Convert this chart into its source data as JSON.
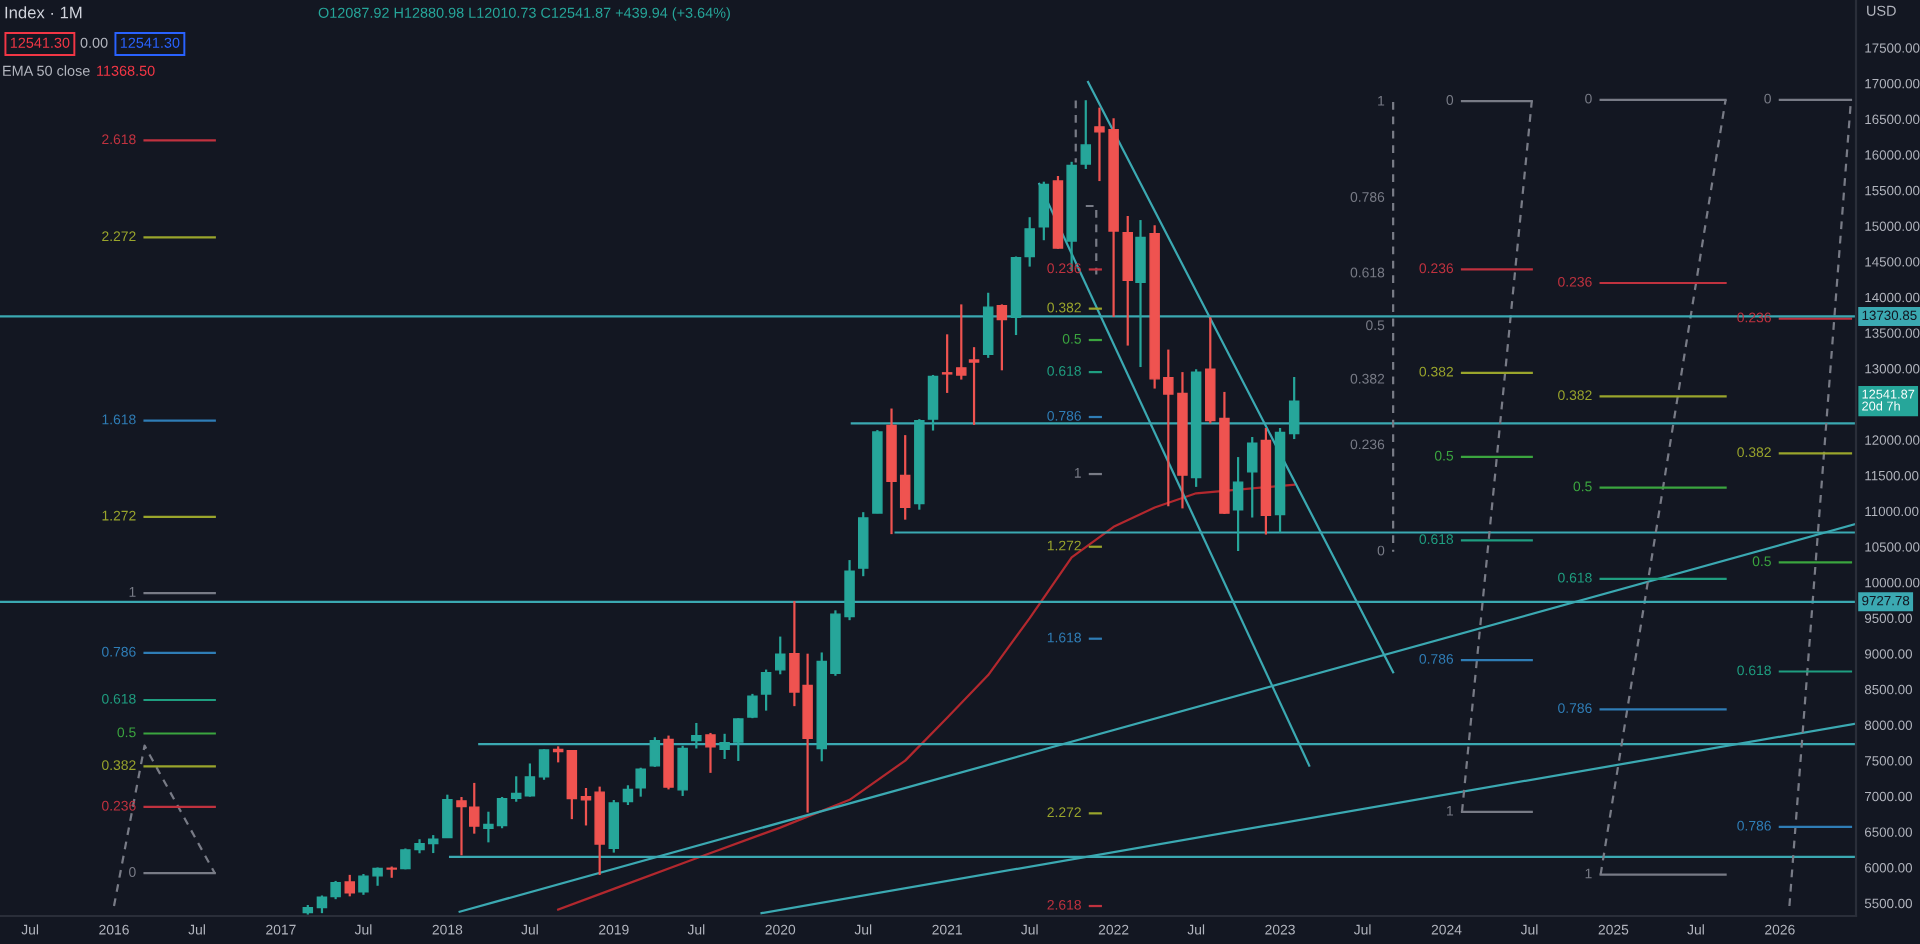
{
  "chart_data": {
    "type": "candlestick",
    "title": "Index · 1M",
    "subtitle": "O12087.92 H12880.98 L12010.73 C12541.87 +439.94 (+3.64%)",
    "x": [
      "2017-03",
      "2017-04",
      "2017-05",
      "2017-06",
      "2017-07",
      "2017-08",
      "2017-09",
      "2017-10",
      "2017-11",
      "2017-12",
      "2018-01",
      "2018-02",
      "2018-03",
      "2018-04",
      "2018-05",
      "2018-06",
      "2018-07",
      "2018-08",
      "2018-09",
      "2018-10",
      "2018-11",
      "2018-12",
      "2019-01",
      "2019-02",
      "2019-03",
      "2019-04",
      "2019-05",
      "2019-06",
      "2019-07",
      "2019-08",
      "2019-09",
      "2019-10",
      "2019-11",
      "2019-12",
      "2020-01",
      "2020-02",
      "2020-03",
      "2020-04",
      "2020-05",
      "2020-06",
      "2020-07",
      "2020-08",
      "2020-09",
      "2020-10",
      "2020-11",
      "2020-12",
      "2021-01",
      "2021-02",
      "2021-03",
      "2021-04",
      "2021-05",
      "2021-06",
      "2021-07",
      "2021-08",
      "2021-09",
      "2021-10",
      "2021-11",
      "2021-12",
      "2022-01",
      "2022-02",
      "2022-03",
      "2022-04",
      "2022-05",
      "2022-06",
      "2022-07",
      "2022-08",
      "2022-09",
      "2022-10",
      "2022-11",
      "2022-12",
      "2023-01",
      "2023-02"
    ],
    "ohlc": [
      [
        5370,
        5474,
        5340,
        5436
      ],
      [
        5440,
        5608,
        5360,
        5584
      ],
      [
        5594,
        5812,
        5556,
        5788
      ],
      [
        5797,
        5897,
        5596,
        5647
      ],
      [
        5660,
        5909,
        5617,
        5880
      ],
      [
        5883,
        6001,
        5744,
        5988
      ],
      [
        5990,
        6014,
        5856,
        5979
      ],
      [
        5987,
        6267,
        5975,
        6248
      ],
      [
        6253,
        6397,
        6200,
        6335
      ],
      [
        6337,
        6455,
        6203,
        6397
      ],
      [
        6421,
        7022,
        6415,
        6950
      ],
      [
        6935,
        6989,
        6171,
        6854
      ],
      [
        6848,
        7187,
        6475,
        6581
      ],
      [
        6550,
        6783,
        6353,
        6606
      ],
      [
        6590,
        6990,
        6551,
        6967
      ],
      [
        6972,
        7280,
        6923,
        7040
      ],
      [
        7006,
        7460,
        6994,
        7272
      ],
      [
        7272,
        7660,
        7231,
        7650
      ],
      [
        7655,
        7700,
        7475,
        7627
      ],
      [
        7640,
        7648,
        6679,
        6967
      ],
      [
        6995,
        7116,
        6590,
        6949
      ],
      [
        7057,
        7135,
        5896,
        6330
      ],
      [
        6269,
        6947,
        6209,
        6906
      ],
      [
        6926,
        7154,
        6877,
        7097
      ],
      [
        7120,
        7400,
        6994,
        7378
      ],
      [
        7426,
        7828,
        7412,
        7781
      ],
      [
        7796,
        7851,
        7096,
        7128
      ],
      [
        7090,
        7708,
        7004,
        7671
      ],
      [
        7780,
        8028,
        7670,
        7848
      ],
      [
        7860,
        7888,
        7328,
        7692
      ],
      [
        7660,
        7876,
        7523,
        7750
      ],
      [
        7760,
        8094,
        7495,
        8084
      ],
      [
        8112,
        8436,
        8095,
        8405
      ],
      [
        8434,
        8777,
        8201,
        8733
      ],
      [
        8773,
        9240,
        8711,
        8992
      ],
      [
        9000,
        9737,
        8264,
        8462
      ],
      [
        8555,
        9000,
        6771,
        7813
      ],
      [
        7669,
        9017,
        7490,
        8890
      ],
      [
        8725,
        9608,
        8690,
        9555
      ],
      [
        9521,
        10313,
        9470,
        10157
      ],
      [
        10200,
        10985,
        10087,
        10905
      ],
      [
        10973,
        12137,
        10970,
        12110
      ],
      [
        12200,
        12439,
        10677,
        11418
      ],
      [
        11500,
        12066,
        10880,
        11052
      ],
      [
        11106,
        12290,
        11020,
        12268
      ],
      [
        12290,
        12910,
        12130,
        12888
      ],
      [
        12940,
        13480,
        12658,
        12925
      ],
      [
        13010,
        13900,
        12845,
        12909
      ],
      [
        13120,
        13300,
        12209,
        13091
      ],
      [
        13200,
        14063,
        13150,
        13861
      ],
      [
        13880,
        13900,
        12975,
        13687
      ],
      [
        13720,
        14572,
        13470,
        14554
      ],
      [
        14570,
        15123,
        14430,
        14960
      ],
      [
        14990,
        15621,
        14800,
        15583
      ],
      [
        15630,
        15701,
        14680,
        14690
      ],
      [
        14790,
        15900,
        14370,
        15850
      ],
      [
        15870,
        16764,
        15800,
        16135
      ],
      [
        16390,
        16660,
        15630,
        16320
      ],
      [
        16350,
        16511,
        13724,
        14930
      ],
      [
        14905,
        15140,
        13322,
        14238
      ],
      [
        14210,
        15083,
        13021,
        14838
      ],
      [
        14890,
        15010,
        12719,
        12855
      ],
      [
        12870,
        13266,
        11068,
        12643
      ],
      [
        12650,
        12950,
        11038,
        11504
      ],
      [
        11470,
        12990,
        11340,
        12947
      ],
      [
        12990,
        13720,
        12230,
        12272
      ],
      [
        12300,
        12672,
        10960,
        10971
      ],
      [
        11020,
        11758,
        10440,
        11406
      ],
      [
        11550,
        12040,
        10910,
        11951
      ],
      [
        11990,
        12166,
        10671,
        10940
      ],
      [
        10950,
        12166,
        10696,
        12102
      ],
      [
        12087.92,
        12880.98,
        12010.73,
        12541.87
      ]
    ],
    "colors": [
      "#26a69a",
      "#26a69a",
      "#26a69a",
      "#ef5350",
      "#26a69a",
      "#26a69a",
      "#ef5350",
      "#26a69a",
      "#26a69a",
      "#26a69a",
      "#26a69a",
      "#ef5350",
      "#ef5350",
      "#26a69a",
      "#26a69a",
      "#26a69a",
      "#26a69a",
      "#26a69a",
      "#ef5350",
      "#ef5350",
      "#ef5350",
      "#ef5350",
      "#26a69a",
      "#26a69a",
      "#26a69a",
      "#26a69a",
      "#ef5350",
      "#26a69a",
      "#26a69a",
      "#ef5350",
      "#26a69a",
      "#26a69a",
      "#26a69a",
      "#26a69a",
      "#26a69a",
      "#ef5350",
      "#ef5350",
      "#26a69a",
      "#26a69a",
      "#26a69a",
      "#26a69a",
      "#26a69a",
      "#ef5350",
      "#ef5350",
      "#26a69a",
      "#26a69a",
      "#ef5350",
      "#ef5350",
      "#ef5350",
      "#26a69a",
      "#ef5350",
      "#26a69a",
      "#26a69a",
      "#26a69a",
      "#ef5350",
      "#26a69a",
      "#26a69a",
      "#ef5350",
      "#ef5350",
      "#ef5350",
      "#26a69a",
      "#ef5350",
      "#ef5350",
      "#ef5350",
      "#26a69a",
      "#ef5350",
      "#ef5350",
      "#26a69a",
      "#26a69a",
      "#ef5350",
      "#26a69a",
      "#26a69a"
    ],
    "series": [
      {
        "type": "line",
        "color": "#b2282e",
        "x": [
          "2018-09",
          "2019-01",
          "2019-07",
          "2020-01",
          "2020-06",
          "2020-10",
          "2021-01",
          "2021-04",
          "2021-07",
          "2021-10",
          "2022-01",
          "2022-04",
          "2022-07",
          "2022-10",
          "2023-02"
        ],
        "values": [
          5410,
          5700,
          6130,
          6560,
          6950,
          7500,
          8100,
          8700,
          9500,
          10350,
          10780,
          11050,
          11250,
          11300,
          11370
        ]
      },
      {
        "type": "line",
        "color": "#3ba9b2",
        "x": [
          "2018-01-28",
          "2026-06-17"
        ],
        "values": [
          5380,
          10820
        ]
      },
      {
        "type": "line",
        "color": "#3ba9b2",
        "x": [
          "2019-11-21",
          "2026-06-17"
        ],
        "values": [
          5360,
          8020
        ]
      },
      {
        "type": "line",
        "color": "#3ba9b2",
        "x": [
          "2021-11-06",
          "2023-09-06"
        ],
        "values": [
          17020,
          8740
        ]
      },
      {
        "type": "line",
        "color": "#3ba9b2",
        "x": [
          "2021-07-22",
          "2023-03-06"
        ],
        "values": [
          15590,
          7430
        ]
      },
      {
        "type": "line",
        "color": "#3ba9b2",
        "x": [
          "2020-06-06",
          "2026-06-17"
        ],
        "values": [
          12230,
          12230
        ]
      },
      {
        "type": "line",
        "color": "#3ba9b2",
        "x": [
          "2020-09-10",
          "2026-06-17"
        ],
        "values": [
          10700,
          10700
        ]
      },
      {
        "type": "line",
        "color": "#3ba9b2",
        "x": [
          "2018-03-12",
          "2026-06-17"
        ],
        "values": [
          7730,
          7730
        ]
      },
      {
        "type": "line",
        "color": "#3ba9b2",
        "x": [
          "2018-01-07",
          "2026-06-17"
        ],
        "values": [
          6150,
          6150
        ]
      },
      {
        "type": "line",
        "color": "#787b86",
        "line_style": "dashed",
        "x": [
          "2016-01-01",
          "2016-03-08",
          "2016-08-09"
        ],
        "values": [
          5460,
          7710,
          5920
        ]
      },
      {
        "type": "line",
        "color": "#787b86",
        "line_style": "dashed",
        "x": [
          "2021-10-10",
          "2021-10-10"
        ],
        "values": [
          16760,
          15890
        ]
      },
      {
        "type": "line",
        "color": "#787b86",
        "line_style": "dashed",
        "x": [
          "2021-11-01",
          "2021-11-24",
          "2021-11-24"
        ],
        "values": [
          15280,
          15280,
          14320
        ]
      },
      {
        "type": "line",
        "color": "#787b86",
        "line_style": "dashed",
        "x": [
          "2023-09-06",
          "2023-09-06"
        ],
        "values": [
          16740,
          10430
        ]
      },
      {
        "type": "line",
        "color": "#787b86",
        "line_style": "dashed",
        "x": [
          "2024-02-04",
          "2024-07-06"
        ],
        "values": [
          6780,
          16750
        ]
      },
      {
        "type": "line",
        "color": "#787b86",
        "line_style": "dashed",
        "x": [
          "2024-12-04",
          "2025-09-04"
        ],
        "values": [
          5900,
          16770
        ]
      },
      {
        "type": "line",
        "color": "#787b86",
        "line_style": "dashed",
        "x": [
          "2026-01-22",
          "2026-06-06"
        ],
        "values": [
          5460,
          16770
        ]
      },
      {
        "type": "line",
        "name": "2.618",
        "color": "#c0323f",
        "x": [
          "2016-03-08",
          "2016-08-09"
        ],
        "values": [
          16200,
          16200
        ]
      },
      {
        "type": "line",
        "name": "2.272",
        "color": "#9aa52c",
        "x": [
          "2016-03-08",
          "2016-08-09"
        ],
        "values": [
          14840,
          14840
        ]
      },
      {
        "type": "line",
        "name": "1.618",
        "color": "#2f7db6",
        "x": [
          "2016-03-08",
          "2016-08-09"
        ],
        "values": [
          12270,
          12270
        ]
      },
      {
        "type": "line",
        "name": "1.272",
        "color": "#9aa52c",
        "x": [
          "2016-03-08",
          "2016-08-09"
        ],
        "values": [
          10920,
          10920
        ]
      },
      {
        "type": "line",
        "name": "1",
        "color": "#787b86",
        "x": [
          "2016-03-08",
          "2016-08-09"
        ],
        "values": [
          9850,
          9850
        ]
      },
      {
        "type": "line",
        "name": "0.786",
        "color": "#2f7db6",
        "x": [
          "2016-03-08",
          "2016-08-09"
        ],
        "values": [
          9010,
          9010
        ]
      },
      {
        "type": "line",
        "name": "0.618",
        "color": "#1f9e80",
        "x": [
          "2016-03-08",
          "2016-08-09"
        ],
        "values": [
          8350,
          8350
        ]
      },
      {
        "type": "line",
        "name": "0.5",
        "color": "#3ba53f",
        "x": [
          "2016-03-08",
          "2016-08-09"
        ],
        "values": [
          7880,
          7880
        ]
      },
      {
        "type": "line",
        "name": "0.382",
        "color": "#9aa52c",
        "x": [
          "2016-03-08",
          "2016-08-09"
        ],
        "values": [
          7420,
          7420
        ]
      },
      {
        "type": "line",
        "name": "0.236",
        "color": "#c0323f",
        "x": [
          "2016-03-08",
          "2016-08-09"
        ],
        "values": [
          6850,
          6850
        ]
      },
      {
        "type": "line",
        "name": "0",
        "color": "#787b86",
        "x": [
          "2016-03-08",
          "2016-08-09"
        ],
        "values": [
          5920,
          5920
        ]
      },
      {
        "type": "line",
        "name": "0.236",
        "color": "#c0323f",
        "x": [
          "2021-11-10",
          "2021-12-04"
        ],
        "values": [
          14390,
          14390
        ]
      },
      {
        "type": "line",
        "name": "0.382",
        "color": "#9aa52c",
        "x": [
          "2021-11-10",
          "2021-12-04"
        ],
        "values": [
          13840,
          13840
        ]
      },
      {
        "type": "line",
        "name": "0.5",
        "color": "#3ba53f",
        "x": [
          "2021-11-10",
          "2021-12-04"
        ],
        "values": [
          13400,
          13400
        ]
      },
      {
        "type": "line",
        "name": "0.618",
        "color": "#1f9e80",
        "x": [
          "2021-11-10",
          "2021-12-04"
        ],
        "values": [
          12950,
          12950
        ]
      },
      {
        "type": "line",
        "name": "0.786",
        "color": "#2f7db6",
        "x": [
          "2021-11-10",
          "2021-12-04"
        ],
        "values": [
          12320,
          12320
        ]
      },
      {
        "type": "line",
        "name": "1",
        "color": "#787b86",
        "x": [
          "2021-11-10",
          "2021-12-04"
        ],
        "values": [
          11520,
          11520
        ]
      },
      {
        "type": "line",
        "name": "1.272",
        "color": "#9aa52c",
        "x": [
          "2021-11-10",
          "2021-12-04"
        ],
        "values": [
          10500,
          10500
        ]
      },
      {
        "type": "line",
        "name": "1.618",
        "color": "#2f7db6",
        "x": [
          "2021-11-10",
          "2021-12-04"
        ],
        "values": [
          9210,
          9210
        ]
      },
      {
        "type": "line",
        "name": "2.272",
        "color": "#9aa52c",
        "x": [
          "2021-11-10",
          "2021-12-04"
        ],
        "values": [
          6760,
          6760
        ]
      },
      {
        "type": "line",
        "name": "2.618",
        "color": "#c0323f",
        "x": [
          "2021-11-10",
          "2021-12-04"
        ],
        "values": [
          5460,
          5460
        ]
      },
      {
        "type": "line",
        "name": "0",
        "color": "#787b86",
        "x": [
          "2024-02-04",
          "2024-07-06"
        ],
        "values": [
          16750,
          16750
        ]
      },
      {
        "type": "line",
        "name": "0.236",
        "color": "#c0323f",
        "x": [
          "2024-02-04",
          "2024-07-06"
        ],
        "values": [
          14390,
          14390
        ]
      },
      {
        "type": "line",
        "name": "0.382",
        "color": "#9aa52c",
        "x": [
          "2024-02-04",
          "2024-07-06"
        ],
        "values": [
          12940,
          12940
        ]
      },
      {
        "type": "line",
        "name": "0.5",
        "color": "#3ba53f",
        "x": [
          "2024-02-04",
          "2024-07-06"
        ],
        "values": [
          11760,
          11760
        ]
      },
      {
        "type": "line",
        "name": "0.618",
        "color": "#1f9e80",
        "x": [
          "2024-02-04",
          "2024-07-06"
        ],
        "values": [
          10590,
          10590
        ]
      },
      {
        "type": "line",
        "name": "0.786",
        "color": "#2f7db6",
        "x": [
          "2024-02-04",
          "2024-07-06"
        ],
        "values": [
          8910,
          8910
        ]
      },
      {
        "type": "line",
        "name": "1",
        "color": "#787b86",
        "x": [
          "2024-02-04",
          "2024-07-06"
        ],
        "values": [
          6780,
          6780
        ]
      },
      {
        "type": "line",
        "name": "0",
        "color": "#787b86",
        "x": [
          "2024-12-04",
          "2025-09-04"
        ],
        "values": [
          16770,
          16770
        ]
      },
      {
        "type": "line",
        "name": "0.236",
        "color": "#c0323f",
        "x": [
          "2024-12-04",
          "2025-09-04"
        ],
        "values": [
          14200,
          14200
        ]
      },
      {
        "type": "line",
        "name": "0.382",
        "color": "#9aa52c",
        "x": [
          "2024-12-04",
          "2025-09-04"
        ],
        "values": [
          12610,
          12610
        ]
      },
      {
        "type": "line",
        "name": "0.5",
        "color": "#3ba53f",
        "x": [
          "2024-12-04",
          "2025-09-04"
        ],
        "values": [
          11330,
          11330
        ]
      },
      {
        "type": "line",
        "name": "0.618",
        "color": "#1f9e80",
        "x": [
          "2024-12-04",
          "2025-09-04"
        ],
        "values": [
          10050,
          10050
        ]
      },
      {
        "type": "line",
        "name": "0.786",
        "color": "#2f7db6",
        "x": [
          "2024-12-04",
          "2025-09-04"
        ],
        "values": [
          8220,
          8220
        ]
      },
      {
        "type": "line",
        "name": "1",
        "color": "#787b86",
        "x": [
          "2024-12-04",
          "2025-09-04"
        ],
        "values": [
          5900,
          5900
        ]
      },
      {
        "type": "line",
        "name": "0",
        "color": "#787b86",
        "x": [
          "2026-01-01",
          "2026-06-06"
        ],
        "values": [
          16770,
          16770
        ]
      },
      {
        "type": "line",
        "name": "0.236",
        "color": "#c0323f",
        "x": [
          "2026-01-01",
          "2026-06-06"
        ],
        "values": [
          13700,
          13700
        ]
      },
      {
        "type": "line",
        "name": "0.382",
        "color": "#9aa52c",
        "x": [
          "2026-01-01",
          "2026-06-06"
        ],
        "values": [
          11810,
          11810
        ]
      },
      {
        "type": "line",
        "name": "0.5",
        "color": "#3ba53f",
        "x": [
          "2026-01-01",
          "2026-06-06"
        ],
        "values": [
          10280,
          10280
        ]
      },
      {
        "type": "line",
        "name": "0.618",
        "color": "#1f9e80",
        "x": [
          "2026-01-01",
          "2026-06-06"
        ],
        "values": [
          8750,
          8750
        ]
      },
      {
        "type": "line",
        "name": "0.786",
        "color": "#2f7db6",
        "x": [
          "2026-01-01",
          "2026-06-06"
        ],
        "values": [
          6570,
          6570
        ]
      }
    ],
    "ref_lines": [
      {
        "axis": "y",
        "value": 13730.85,
        "label": "13730.85",
        "color": "#3ba9b2"
      },
      {
        "axis": "y",
        "value": 9727.78,
        "label": "9727.78",
        "color": "#3ba9b2"
      }
    ],
    "annotations": [
      "12541.30",
      "0.00",
      "12541.30",
      "EMA 50 close",
      "11368.50",
      "USD",
      {
        "text": "12541.87\n20d 7h",
        "y": 12541.87
      },
      {
        "text": "1",
        "x": "2023-09-06",
        "y": 16740
      },
      {
        "text": "0.786",
        "x": "2023-09-06",
        "y": 15390
      },
      {
        "text": "0.618",
        "x": "2023-09-06",
        "y": 14330
      },
      {
        "text": "0.5",
        "x": "2023-09-06",
        "y": 13590
      },
      {
        "text": "0.382",
        "x": "2023-09-06",
        "y": 12840
      },
      {
        "text": "0.236",
        "x": "2023-09-06",
        "y": 11920
      },
      {
        "text": "0",
        "x": "2023-09-06",
        "y": 10430
      }
    ],
    "xlim": [
      "2015-04-26",
      "2026-06-17"
    ],
    "ylim": [
      5320,
      18170
    ],
    "xticks": [
      {
        "value": "2015-07",
        "label": "Jul"
      },
      "2016",
      {
        "value": "2016-07",
        "label": "Jul"
      },
      "2017",
      {
        "value": "2017-07",
        "label": "Jul"
      },
      "2018",
      {
        "value": "2018-07",
        "label": "Jul"
      },
      "2019",
      {
        "value": "2019-07",
        "label": "Jul"
      },
      "2020",
      {
        "value": "2020-07",
        "label": "Jul"
      },
      "2021",
      {
        "value": "2021-07",
        "label": "Jul"
      },
      "2022",
      {
        "value": "2022-07",
        "label": "Jul"
      },
      "2023",
      {
        "value": "2023-07",
        "label": "Jul"
      },
      "2024",
      {
        "value": "2024-07",
        "label": "Jul"
      },
      "2025",
      {
        "value": "2025-07",
        "label": "Jul"
      },
      "2026"
    ],
    "yticks": [
      {
        "value": 5500,
        "label": "5500.00"
      },
      {
        "value": 6000,
        "label": "6000.00"
      },
      {
        "value": 6500,
        "label": "6500.00"
      },
      {
        "value": 7000,
        "label": "7000.00"
      },
      {
        "value": 7500,
        "label": "7500.00"
      },
      {
        "value": 8000,
        "label": "8000.00"
      },
      {
        "value": 8500,
        "label": "8500.00"
      },
      {
        "value": 9000,
        "label": "9000.00"
      },
      {
        "value": 9500,
        "label": "9500.00"
      },
      {
        "value": 10000,
        "label": "10000.00"
      },
      {
        "value": 10500,
        "label": "10500.00"
      },
      {
        "value": 11000,
        "label": "11000.00"
      },
      {
        "value": 11500,
        "label": "11500.00"
      },
      {
        "value": 12000,
        "label": "12000.00"
      },
      {
        "value": 13000,
        "label": "13000.00"
      },
      {
        "value": 13500,
        "label": "13500.00"
      },
      {
        "value": 14000,
        "label": "14000.00"
      },
      {
        "value": 14500,
        "label": "14500.00"
      },
      {
        "value": 15000,
        "label": "15000.00"
      },
      {
        "value": 15500,
        "label": "15500.00"
      },
      {
        "value": 16000,
        "label": "16000.00"
      },
      {
        "value": 16500,
        "label": "16500.00"
      },
      {
        "value": 17000,
        "label": "17000.00"
      },
      {
        "value": 17500,
        "label": "17500.00"
      }
    ]
  }
}
